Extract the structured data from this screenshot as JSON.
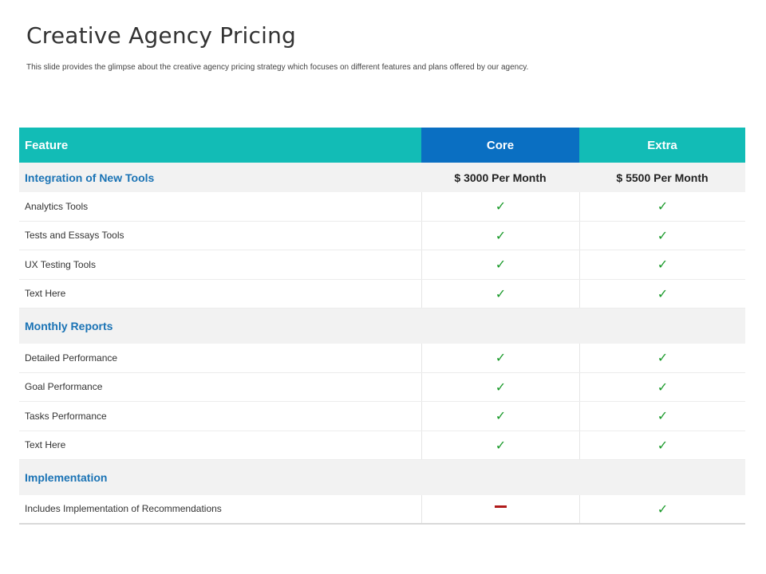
{
  "title": "Creative Agency Pricing",
  "subtitle": "This slide provides the glimpse about the creative agency pricing strategy which focuses on different features and plans offered by our agency.",
  "table": {
    "headers": {
      "feature": "Feature",
      "core": "Core",
      "extra": "Extra"
    },
    "sections": [
      {
        "name": "Integration of New Tools",
        "core_price": "$ 3000 Per Month",
        "extra_price": "$ 5500 Per Month",
        "rows": [
          {
            "label": "Analytics Tools",
            "core": "✓",
            "extra": "✓"
          },
          {
            "label": "Tests and Essays Tools",
            "core": "✓",
            "extra": "✓"
          },
          {
            "label": "UX Testing Tools",
            "core": "✓",
            "extra": "✓"
          },
          {
            "label": "Text Here",
            "core": "✓",
            "extra": "✓"
          }
        ]
      },
      {
        "name": "Monthly Reports",
        "rows": [
          {
            "label": "Detailed Performance",
            "core": "✓",
            "extra": "✓"
          },
          {
            "label": "Goal Performance",
            "core": "✓",
            "extra": "✓"
          },
          {
            "label": "Tasks Performance",
            "core": "✓",
            "extra": "✓"
          },
          {
            "label": "Text Here",
            "core": "✓",
            "extra": "✓"
          }
        ]
      },
      {
        "name": "Implementation",
        "rows": [
          {
            "label": "Includes Implementation of Recommendations",
            "core": "",
            "extra": "✓"
          }
        ]
      }
    ]
  },
  "colors": {
    "header_teal": "#12bcb6",
    "header_blue": "#0a6fc2",
    "section_text": "#1a73b5",
    "check_green": "#1a9a2a",
    "dash_red": "#b01a1a"
  },
  "icons": {
    "included": "check-icon",
    "not_included": "dash-icon"
  }
}
